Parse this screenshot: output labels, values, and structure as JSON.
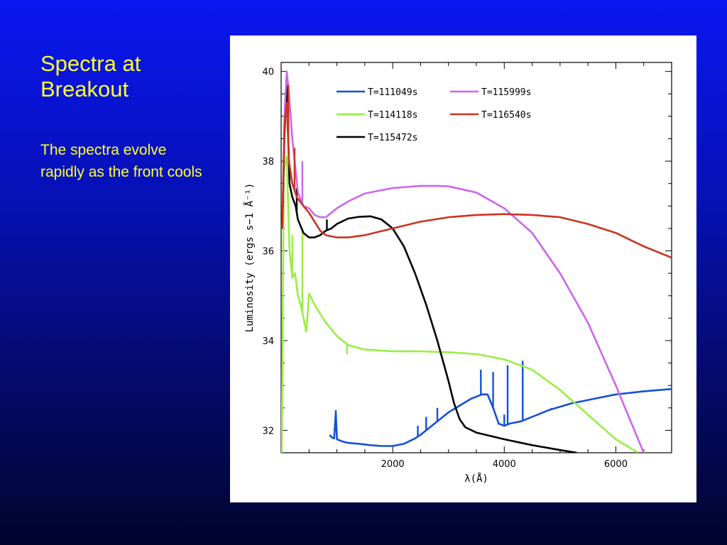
{
  "slide": {
    "title": "Spectra at Breakout",
    "body": "The spectra evolve rapidly as the front cools"
  },
  "chart_data": {
    "type": "line",
    "title": "",
    "xlabel": "λ(Å)",
    "ylabel": "Luminosity (ergs s−1 Å⁻¹)",
    "xlim": [
      0,
      7000
    ],
    "ylim": [
      31.5,
      40.2
    ],
    "xticks": [
      2000,
      4000,
      6000
    ],
    "yticks": [
      32,
      34,
      36,
      38,
      40
    ],
    "grid": false,
    "legend_position": "top-right",
    "series": [
      {
        "name": "T=111049s",
        "color": "#1450d8",
        "points": [
          [
            870,
            31.9
          ],
          [
            900,
            31.85
          ],
          [
            950,
            31.82
          ],
          [
            980,
            32.4
          ],
          [
            1000,
            31.8
          ],
          [
            1100,
            31.75
          ],
          [
            1200,
            31.72
          ],
          [
            1400,
            31.7
          ],
          [
            1600,
            31.67
          ],
          [
            1800,
            31.65
          ],
          [
            2000,
            31.65
          ],
          [
            2200,
            31.7
          ],
          [
            2400,
            31.82
          ],
          [
            2500,
            31.9
          ],
          [
            2600,
            32.0
          ],
          [
            2800,
            32.2
          ],
          [
            3000,
            32.4
          ],
          [
            3200,
            32.55
          ],
          [
            3400,
            32.7
          ],
          [
            3600,
            32.8
          ],
          [
            3700,
            32.8
          ],
          [
            3800,
            32.5
          ],
          [
            3900,
            32.15
          ],
          [
            4000,
            32.1
          ],
          [
            4100,
            32.15
          ],
          [
            4300,
            32.2
          ],
          [
            4500,
            32.3
          ],
          [
            4800,
            32.45
          ],
          [
            5200,
            32.6
          ],
          [
            5600,
            32.7
          ],
          [
            6000,
            32.8
          ],
          [
            6500,
            32.87
          ],
          [
            7000,
            32.92
          ]
        ],
        "lines": [
          [
            980,
            32.45
          ],
          [
            2450,
            32.1
          ],
          [
            2600,
            32.3
          ],
          [
            2800,
            32.5
          ],
          [
            3580,
            33.35
          ],
          [
            3800,
            33.3
          ],
          [
            4000,
            32.35
          ],
          [
            4060,
            33.45
          ],
          [
            4330,
            33.55
          ],
          [
            4850,
            32.5
          ]
        ]
      },
      {
        "name": "T=114118s",
        "color": "#99ee44",
        "points": [
          [
            10,
            31.5
          ],
          [
            50,
            37.8
          ],
          [
            100,
            38.1
          ],
          [
            150,
            36.0
          ],
          [
            200,
            35.4
          ],
          [
            250,
            35.5
          ],
          [
            300,
            35.0
          ],
          [
            350,
            34.8
          ],
          [
            450,
            34.2
          ],
          [
            500,
            35.05
          ],
          [
            600,
            34.8
          ],
          [
            800,
            34.4
          ],
          [
            1000,
            34.1
          ],
          [
            1200,
            33.9
          ],
          [
            1500,
            33.8
          ],
          [
            2000,
            33.76
          ],
          [
            2500,
            33.76
          ],
          [
            3000,
            33.74
          ],
          [
            3500,
            33.7
          ],
          [
            4000,
            33.58
          ],
          [
            4500,
            33.35
          ],
          [
            5000,
            32.9
          ],
          [
            5500,
            32.35
          ],
          [
            6000,
            31.8
          ],
          [
            6400,
            31.5
          ]
        ],
        "lines": [
          [
            200,
            36.35
          ],
          [
            380,
            36.5
          ],
          [
            1180,
            33.7
          ]
        ]
      },
      {
        "name": "T=115472s",
        "color": "#000000",
        "points": [
          [
            20,
            36.5
          ],
          [
            60,
            38.6
          ],
          [
            100,
            39.7
          ],
          [
            150,
            37.5
          ],
          [
            200,
            37.2
          ],
          [
            260,
            37.0
          ],
          [
            300,
            36.7
          ],
          [
            400,
            36.4
          ],
          [
            500,
            36.3
          ],
          [
            600,
            36.3
          ],
          [
            700,
            36.35
          ],
          [
            800,
            36.45
          ],
          [
            900,
            36.5
          ],
          [
            1000,
            36.6
          ],
          [
            1200,
            36.72
          ],
          [
            1400,
            36.76
          ],
          [
            1600,
            36.77
          ],
          [
            1800,
            36.7
          ],
          [
            2000,
            36.5
          ],
          [
            2200,
            36.1
          ],
          [
            2400,
            35.5
          ],
          [
            2600,
            34.8
          ],
          [
            2800,
            34.0
          ],
          [
            3000,
            33.1
          ],
          [
            3100,
            32.6
          ],
          [
            3200,
            32.25
          ],
          [
            3300,
            32.07
          ],
          [
            3500,
            31.95
          ],
          [
            4000,
            31.8
          ],
          [
            4500,
            31.67
          ],
          [
            5000,
            31.56
          ],
          [
            5300,
            31.5
          ]
        ],
        "lines": [
          [
            120,
            39.75
          ],
          [
            280,
            37.4
          ],
          [
            820,
            36.7
          ]
        ]
      },
      {
        "name": "T=115999s",
        "color": "#cc66ee",
        "points": [
          [
            20,
            36.5
          ],
          [
            60,
            39.0
          ],
          [
            100,
            40.0
          ],
          [
            140,
            39.5
          ],
          [
            200,
            38.5
          ],
          [
            260,
            37.8
          ],
          [
            300,
            37.3
          ],
          [
            400,
            37.0
          ],
          [
            500,
            36.95
          ],
          [
            600,
            36.8
          ],
          [
            700,
            36.75
          ],
          [
            800,
            36.75
          ],
          [
            1000,
            36.95
          ],
          [
            1200,
            37.1
          ],
          [
            1500,
            37.28
          ],
          [
            2000,
            37.4
          ],
          [
            2500,
            37.45
          ],
          [
            2800,
            37.45
          ],
          [
            3000,
            37.44
          ],
          [
            3500,
            37.3
          ],
          [
            4000,
            36.95
          ],
          [
            4500,
            36.4
          ],
          [
            5000,
            35.5
          ],
          [
            5500,
            34.4
          ],
          [
            6000,
            33.0
          ],
          [
            6500,
            31.5
          ]
        ],
        "lines": [
          [
            380,
            38.0
          ]
        ]
      },
      {
        "name": "T=116540s",
        "color": "#cc3322",
        "points": [
          [
            20,
            36.5
          ],
          [
            60,
            38.8
          ],
          [
            100,
            39.3
          ],
          [
            140,
            38.0
          ],
          [
            200,
            37.5
          ],
          [
            280,
            37.2
          ],
          [
            400,
            37.0
          ],
          [
            500,
            36.85
          ],
          [
            600,
            36.65
          ],
          [
            700,
            36.45
          ],
          [
            800,
            36.35
          ],
          [
            1000,
            36.3
          ],
          [
            1200,
            36.3
          ],
          [
            1500,
            36.35
          ],
          [
            2000,
            36.5
          ],
          [
            2500,
            36.65
          ],
          [
            3000,
            36.75
          ],
          [
            3500,
            36.8
          ],
          [
            4000,
            36.82
          ],
          [
            4500,
            36.8
          ],
          [
            5000,
            36.75
          ],
          [
            5500,
            36.6
          ],
          [
            6000,
            36.4
          ],
          [
            6500,
            36.1
          ],
          [
            7000,
            35.85
          ]
        ],
        "lines": [
          [
            130,
            39.7
          ],
          [
            240,
            38.3
          ]
        ]
      }
    ]
  }
}
